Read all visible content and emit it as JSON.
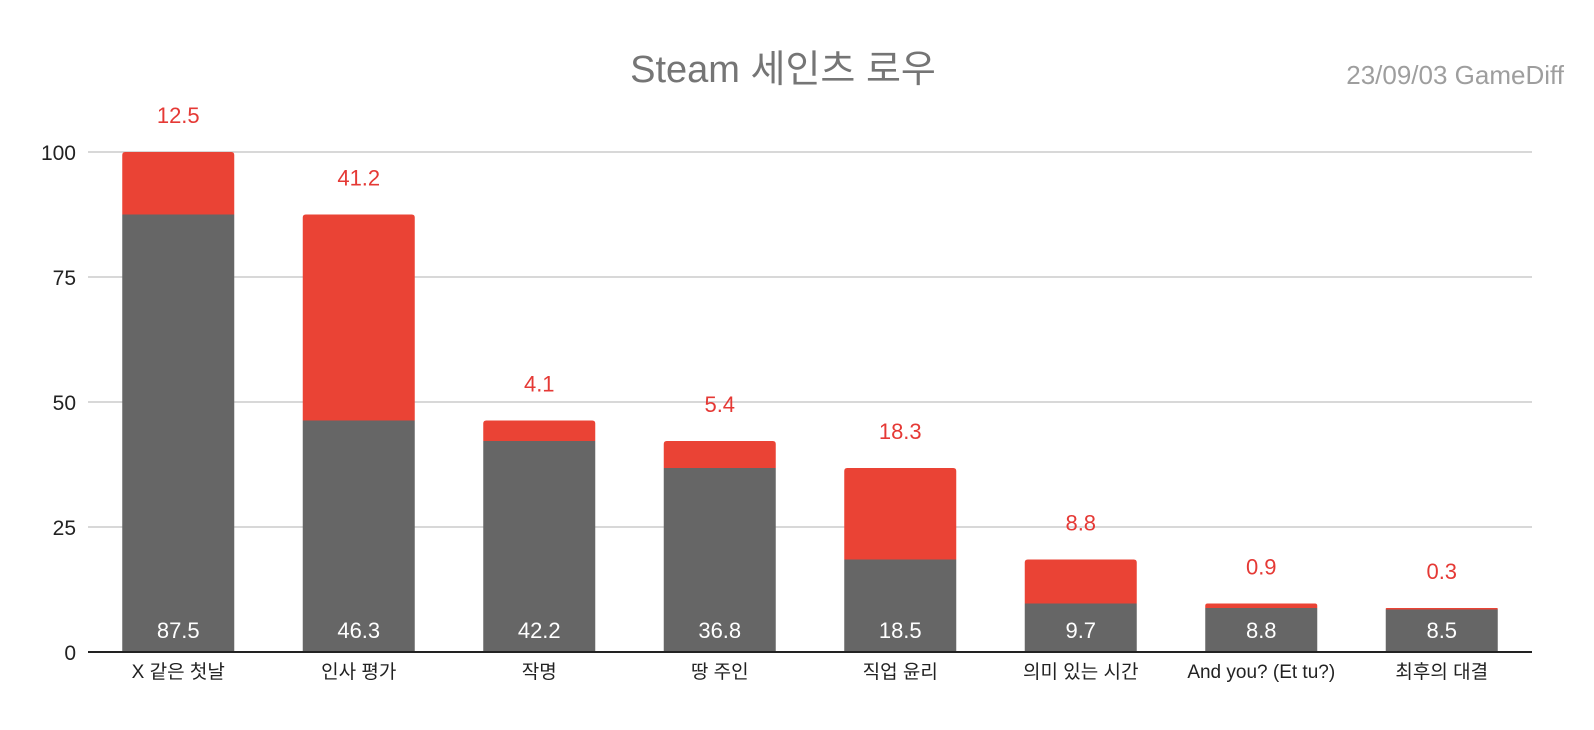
{
  "title": "Steam 세인츠 로우",
  "subtitle": "23/09/03  GameDiff",
  "colors": {
    "base": "#666666",
    "top": "#ea4335",
    "grid": "#cccccc",
    "axis": "#222222"
  },
  "chart_data": {
    "type": "bar",
    "stacked": true,
    "title": "Steam 세인츠 로우",
    "subtitle": "23/09/03  GameDiff",
    "categories": [
      "X 같은 첫날",
      "인사 평가",
      "작명",
      "땅 주인",
      "직업 윤리",
      "의미 있는 시간",
      "And you? (Et tu?)",
      "최후의 대결"
    ],
    "series": [
      {
        "values": [
          87.5,
          46.3,
          42.2,
          36.8,
          18.5,
          9.7,
          8.8,
          8.5
        ],
        "color": "#666666"
      },
      {
        "values": [
          12.5,
          41.2,
          4.1,
          5.4,
          18.3,
          8.8,
          0.9,
          0.3
        ],
        "color": "#ea4335"
      }
    ],
    "ylim": [
      0,
      100
    ],
    "yticks": [
      0,
      25,
      50,
      75,
      100
    ],
    "grid": true,
    "legend": "none"
  }
}
